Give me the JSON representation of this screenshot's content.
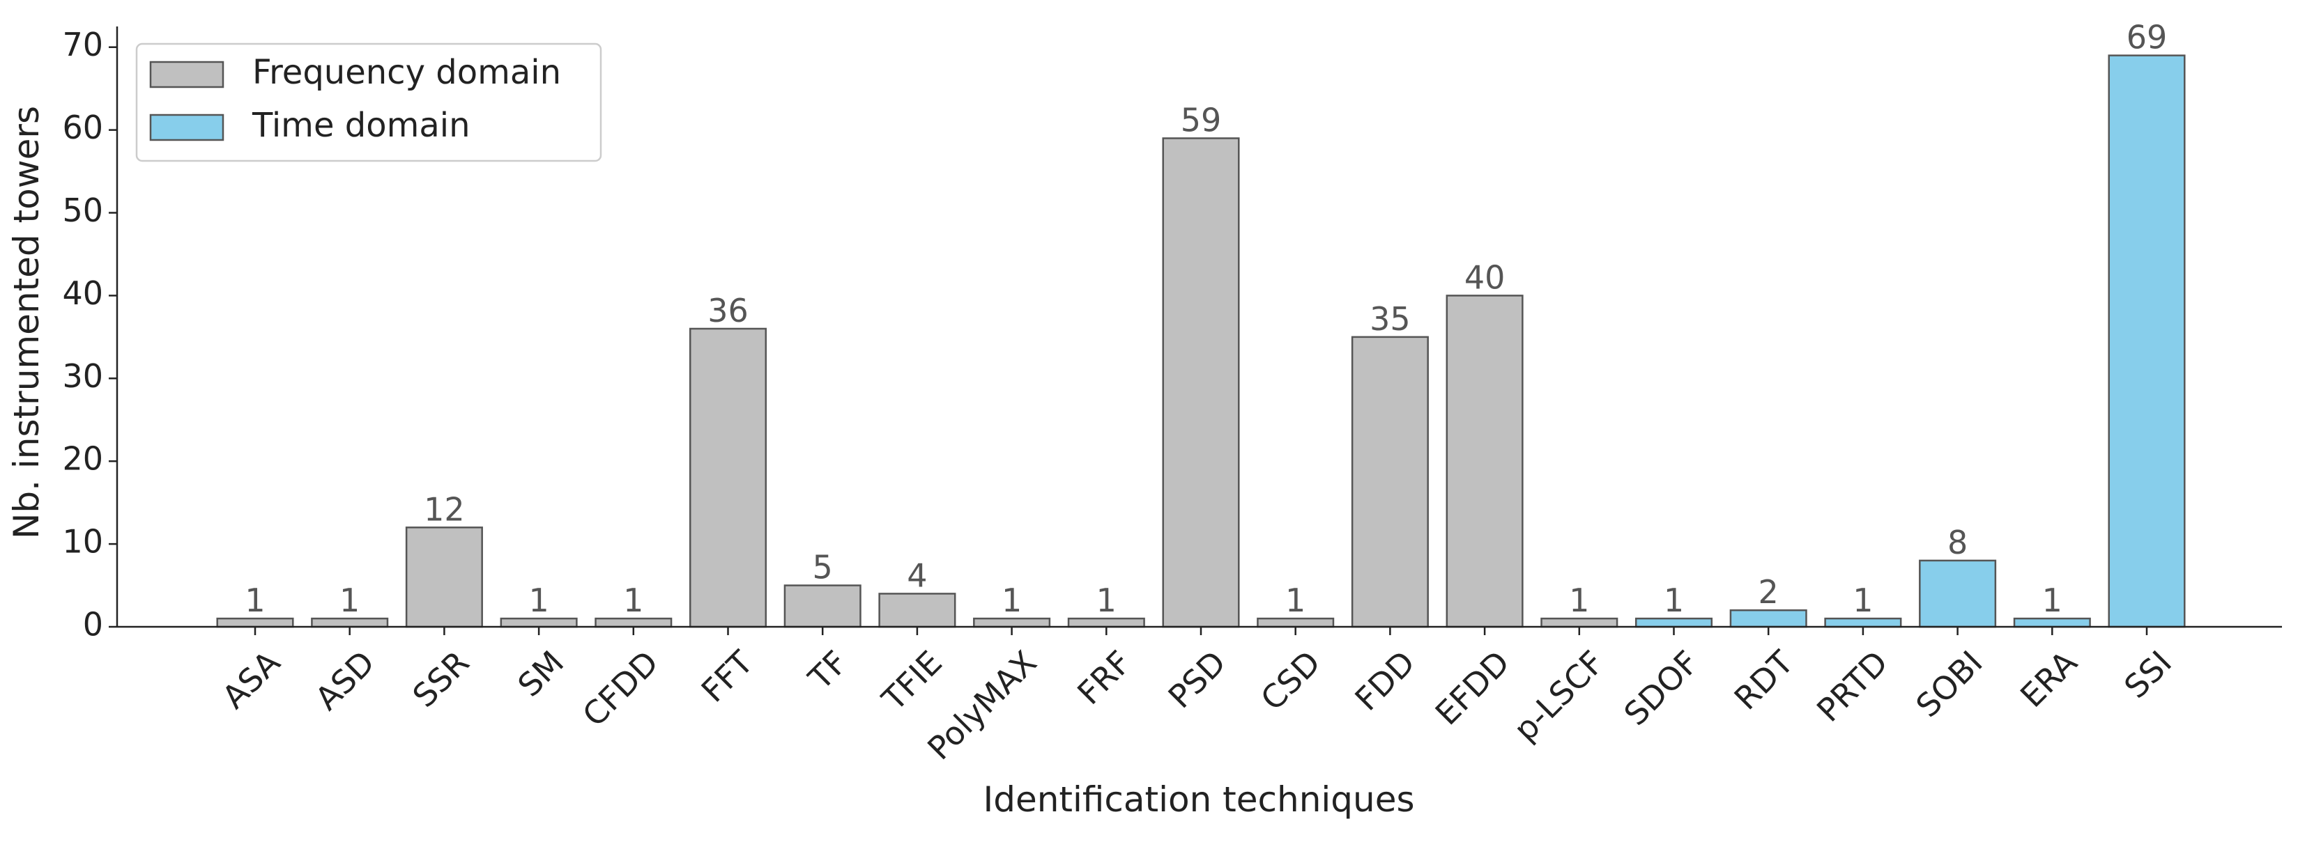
{
  "chart_data": {
    "type": "bar",
    "xlabel": "Identification techniques",
    "ylabel": "Nb. instrumented towers",
    "categories": [
      "ASA",
      "ASD",
      "SSR",
      "SM",
      "CFDD",
      "FFT",
      "TF",
      "TFIE",
      "PolyMAX",
      "FRF",
      "PSD",
      "CSD",
      "FDD",
      "EFDD",
      "p-LSCF",
      "SDOF",
      "RDT",
      "PRTD",
      "SOBI",
      "ERA",
      "SSI"
    ],
    "series": [
      {
        "name": "Frequency domain",
        "color": "#c0c0c0",
        "values": [
          1,
          1,
          12,
          1,
          1,
          36,
          5,
          4,
          1,
          1,
          59,
          1,
          35,
          40,
          1,
          null,
          null,
          null,
          null,
          null,
          null
        ]
      },
      {
        "name": "Time domain",
        "color": "#87ceeb",
        "values": [
          null,
          null,
          null,
          null,
          null,
          null,
          null,
          null,
          null,
          null,
          null,
          null,
          null,
          null,
          null,
          1,
          2,
          1,
          8,
          1,
          69
        ]
      }
    ],
    "ylim": [
      0,
      72.5
    ],
    "yticks": [
      0,
      10,
      20,
      30,
      40,
      50,
      60,
      70
    ],
    "legend": "upper left"
  }
}
